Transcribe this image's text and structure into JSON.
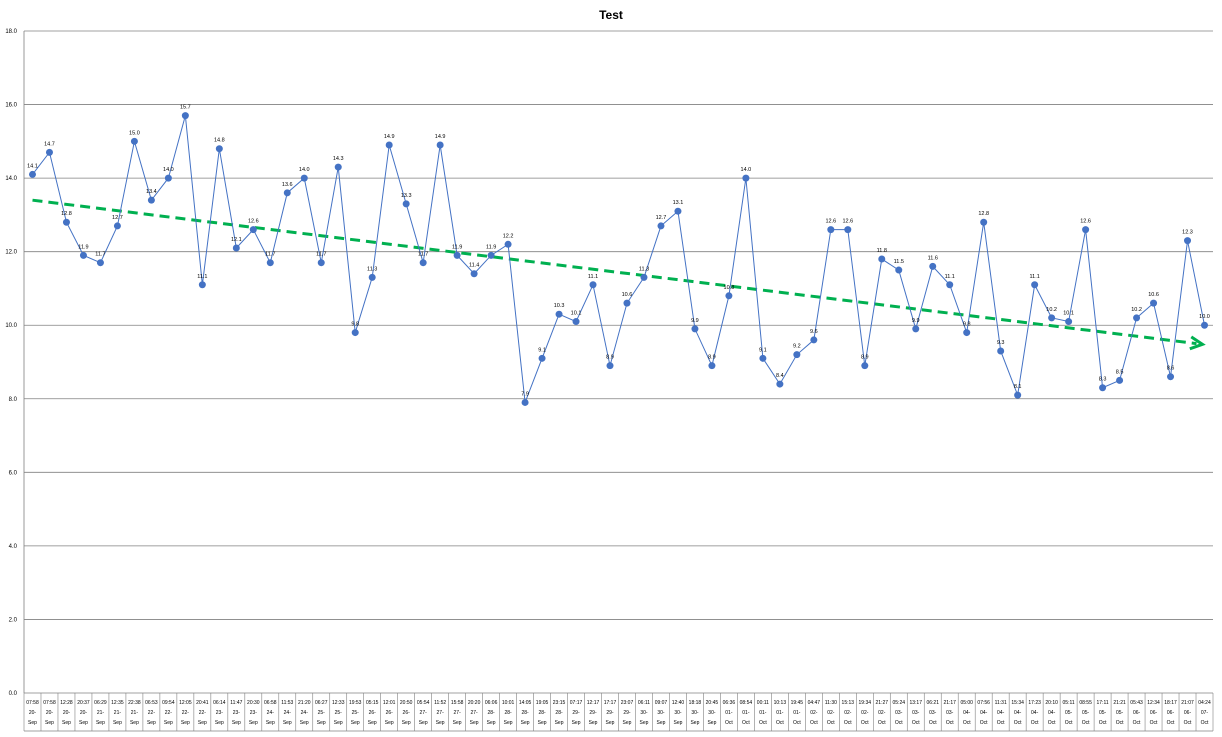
{
  "chart_data": {
    "type": "line",
    "title": "Test",
    "xlabel": "",
    "ylabel": "",
    "ylim": [
      0,
      18
    ],
    "yticks": [
      "0.0",
      "2.0",
      "4.0",
      "6.0",
      "8.0",
      "10.0",
      "12.0",
      "14.0",
      "16.0",
      "18.0"
    ],
    "grid": true,
    "legend": "none",
    "series": [
      {
        "values": [
          14.1,
          14.7,
          12.8,
          11.9,
          11.7,
          12.7,
          15.0,
          13.4,
          14.0,
          15.7,
          11.1,
          14.8,
          12.1,
          12.6,
          11.7,
          13.6,
          14.0,
          11.7,
          14.3,
          9.8,
          11.3,
          14.9,
          13.3,
          11.7,
          14.9,
          11.9,
          11.4,
          11.9,
          12.2,
          7.9,
          9.1,
          10.3,
          10.1,
          11.1,
          8.9,
          10.6,
          11.3,
          12.7,
          13.1,
          9.9,
          8.9,
          10.8,
          14.0,
          9.1,
          8.4,
          9.2,
          9.6,
          12.6,
          12.6,
          8.9,
          11.8,
          11.5,
          9.9,
          11.6,
          11.1,
          9.8,
          12.8,
          9.3,
          8.1,
          11.1,
          10.2,
          10.1,
          12.6,
          8.3,
          8.5,
          10.2,
          10.6,
          8.6,
          12.3,
          10.0
        ]
      }
    ],
    "trendline": {
      "start": 13.4,
      "end": 9.5
    },
    "x": [
      [
        "07:58",
        "20-",
        "Sep"
      ],
      [
        "07:58",
        "20-",
        "Sep"
      ],
      [
        "12:28",
        "20-",
        "Sep"
      ],
      [
        "20:37",
        "20-",
        "Sep"
      ],
      [
        "06:29",
        "21-",
        "Sep"
      ],
      [
        "12:35",
        "21-",
        "Sep"
      ],
      [
        "22:38",
        "21-",
        "Sep"
      ],
      [
        "06:53",
        "22-",
        "Sep"
      ],
      [
        "09:54",
        "22-",
        "Sep"
      ],
      [
        "12:05",
        "22-",
        "Sep"
      ],
      [
        "20:41",
        "22-",
        "Sep"
      ],
      [
        "06:14",
        "23-",
        "Sep"
      ],
      [
        "11:47",
        "23-",
        "Sep"
      ],
      [
        "20:30",
        "23-",
        "Sep"
      ],
      [
        "06:58",
        "24-",
        "Sep"
      ],
      [
        "11:53",
        "24-",
        "Sep"
      ],
      [
        "21:20",
        "24-",
        "Sep"
      ],
      [
        "06:27",
        "25-",
        "Sep"
      ],
      [
        "12:33",
        "25-",
        "Sep"
      ],
      [
        "19:53",
        "25-",
        "Sep"
      ],
      [
        "05:15",
        "26-",
        "Sep"
      ],
      [
        "12:01",
        "26-",
        "Sep"
      ],
      [
        "20:50",
        "26-",
        "Sep"
      ],
      [
        "05:54",
        "27-",
        "Sep"
      ],
      [
        "11:52",
        "27-",
        "Sep"
      ],
      [
        "15:58",
        "27-",
        "Sep"
      ],
      [
        "20:20",
        "27-",
        "Sep"
      ],
      [
        "06:06",
        "28-",
        "Sep"
      ],
      [
        "10:01",
        "28-",
        "Sep"
      ],
      [
        "14:05",
        "28-",
        "Sep"
      ],
      [
        "19:05",
        "28-",
        "Sep"
      ],
      [
        "23:15",
        "28-",
        "Sep"
      ],
      [
        "07:17",
        "29-",
        "Sep"
      ],
      [
        "12:17",
        "29-",
        "Sep"
      ],
      [
        "17:17",
        "29-",
        "Sep"
      ],
      [
        "23:07",
        "29-",
        "Sep"
      ],
      [
        "06:11",
        "30-",
        "Sep"
      ],
      [
        "09:07",
        "30-",
        "Sep"
      ],
      [
        "12:40",
        "30-",
        "Sep"
      ],
      [
        "18:18",
        "30-",
        "Sep"
      ],
      [
        "20:45",
        "30-",
        "Sep"
      ],
      [
        "06:36",
        "01-",
        "Oct"
      ],
      [
        "08:54",
        "01-",
        "Oct"
      ],
      [
        "00:11",
        "01-",
        "Oct"
      ],
      [
        "10:13",
        "01-",
        "Oct"
      ],
      [
        "19:45",
        "01-",
        "Oct"
      ],
      [
        "04:47",
        "02-",
        "Oct"
      ],
      [
        "11:30",
        "02-",
        "Oct"
      ],
      [
        "15:13",
        "02-",
        "Oct"
      ],
      [
        "19:34",
        "02-",
        "Oct"
      ],
      [
        "21:27",
        "02-",
        "Oct"
      ],
      [
        "05:24",
        "03-",
        "Oct"
      ],
      [
        "13:17",
        "03-",
        "Oct"
      ],
      [
        "06:21",
        "03-",
        "Oct"
      ],
      [
        "21:17",
        "03-",
        "Oct"
      ],
      [
        "05:00",
        "04-",
        "Oct"
      ],
      [
        "07:56",
        "04-",
        "Oct"
      ],
      [
        "11:31",
        "04-",
        "Oct"
      ],
      [
        "15:34",
        "04-",
        "Oct"
      ],
      [
        "17:23",
        "04-",
        "Oct"
      ],
      [
        "20:10",
        "04-",
        "Oct"
      ],
      [
        "05:11",
        "05-",
        "Oct"
      ],
      [
        "08:55",
        "05-",
        "Oct"
      ],
      [
        "17:11",
        "05-",
        "Oct"
      ],
      [
        "21:21",
        "05-",
        "Oct"
      ],
      [
        "05:43",
        "06-",
        "Oct"
      ],
      [
        "12:34",
        "06-",
        "Oct"
      ],
      [
        "18:17",
        "06-",
        "Oct"
      ],
      [
        "21:07",
        "06-",
        "Oct"
      ],
      [
        "04:24",
        "07-",
        "Oct"
      ]
    ],
    "colors": {
      "series": "#4472c4",
      "marker": "#4472c4",
      "trend": "#00b050",
      "grid": "#808080"
    }
  }
}
